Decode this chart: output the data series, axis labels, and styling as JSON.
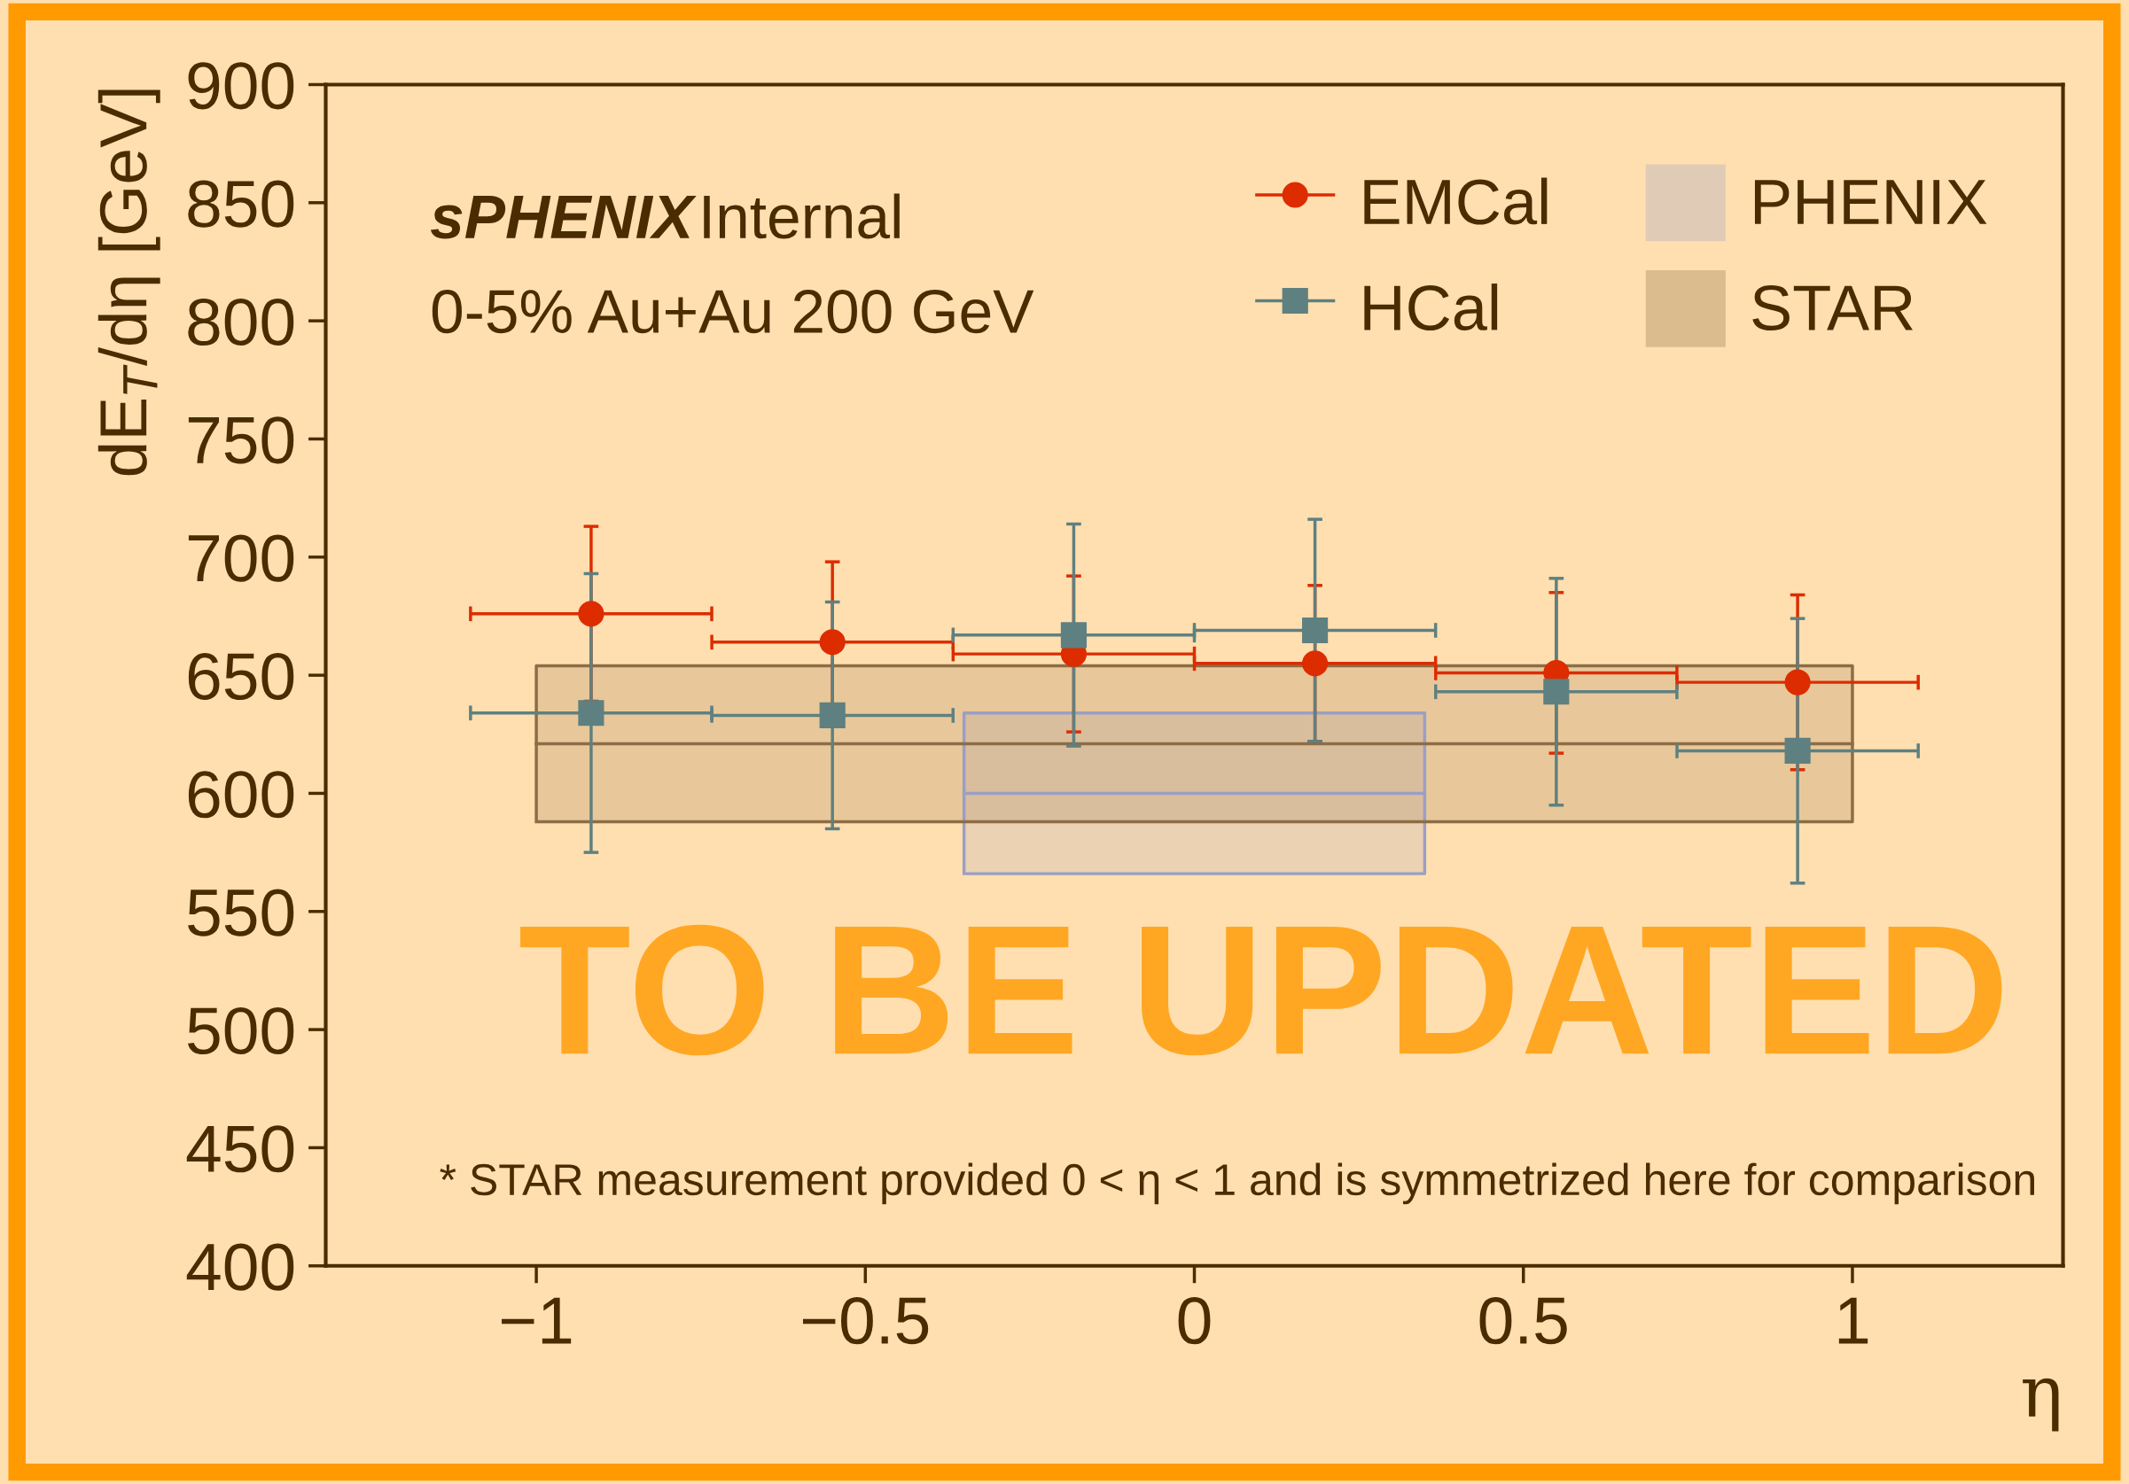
{
  "chart_data": {
    "type": "scatter",
    "xlabel": "η",
    "ylabel": "dE$_{T}$/dη [GeV]",
    "xlim": [
      -1.32,
      1.32
    ],
    "ylim": [
      400,
      900
    ],
    "xticks": [
      {
        "value": -1,
        "label": "−1"
      },
      {
        "value": -0.5,
        "label": "−0.5"
      },
      0,
      0.5,
      1
    ],
    "yticks": [
      400,
      450,
      500,
      550,
      600,
      650,
      700,
      750,
      800,
      850,
      900
    ],
    "grid": false,
    "legend": "top right",
    "series": [
      {
        "name": "EMCal",
        "marker": "circle",
        "color": "#dd2c00",
        "x": [
          -0.9167,
          -0.55,
          -0.1833,
          0.1833,
          0.55,
          0.9167
        ],
        "values": [
          676,
          664,
          659,
          655,
          651,
          647
        ],
        "errors": [
          37,
          34,
          33,
          33,
          34,
          37
        ],
        "xerrors": [
          0.1833,
          0.1833,
          0.1833,
          0.1833,
          0.1833,
          0.1833
        ]
      },
      {
        "name": "HCal",
        "marker": "square",
        "color": "#5f8080",
        "x": [
          -0.9167,
          -0.55,
          -0.1833,
          0.1833,
          0.55,
          0.9167
        ],
        "values": [
          634,
          633,
          667,
          669,
          643,
          618
        ],
        "errors": [
          59,
          48,
          47,
          47,
          48,
          56
        ],
        "xerrors": [
          0.1833,
          0.1833,
          0.1833,
          0.1833,
          0.1833,
          0.1833
        ]
      },
      {
        "name": "PHENIX",
        "type": "line",
        "color": "#9a9fc4",
        "x": [
          -0.35,
          0.35
        ],
        "values": [
          600,
          600
        ],
        "lower": [
          566,
          566
        ],
        "upper": [
          634,
          634
        ]
      },
      {
        "name": "STAR",
        "type": "line",
        "color": "#8c6d45",
        "x": [
          -1,
          1
        ],
        "values": [
          621,
          621
        ],
        "lower": [
          588,
          588
        ],
        "upper": [
          654,
          654
        ]
      }
    ],
    "annotations": [
      "sPHENIX",
      "Internal",
      "0-5% Au+Au 200 GeV",
      "* STAR measurement provided 0 < η < 1 and is symmetrized here for comparison",
      "TO BE UPDATED"
    ]
  }
}
